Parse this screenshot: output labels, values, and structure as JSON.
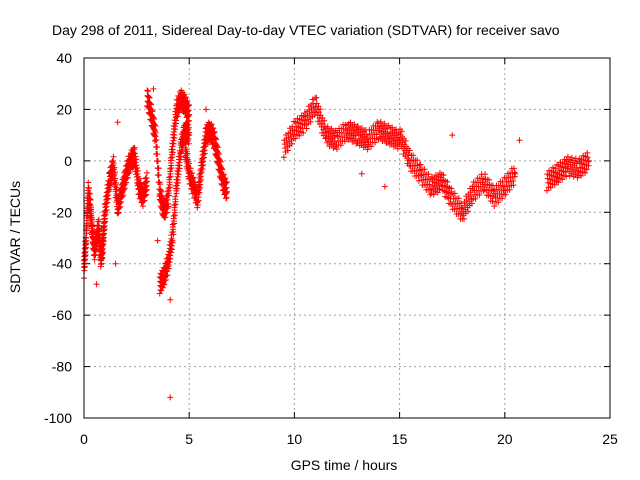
{
  "chart_data": {
    "type": "scatter",
    "title": "Day 298 of 2011, Sidereal Day-to-day VTEC variation (SDTVAR) for receiver savo",
    "xlabel": "GPS time / hours",
    "ylabel": "SDTVAR / TECUs",
    "xlim": [
      0,
      25
    ],
    "ylim": [
      -100,
      40
    ],
    "xticks": [
      0,
      5,
      10,
      15,
      20,
      25
    ],
    "yticks": [
      40,
      20,
      0,
      -20,
      -40,
      -60,
      -80,
      -100
    ],
    "xtick_labels": [
      "0",
      "5",
      "10",
      "15",
      "20",
      "25"
    ],
    "ytick_labels": [
      "40",
      "20",
      "0",
      "-20",
      "-40",
      "-60",
      "-80",
      "-100"
    ],
    "grid": true,
    "marker": "+",
    "color": "#ff0000",
    "series": [
      {
        "name": "SDTVAR",
        "segments": [
          {
            "x": [
              0.0,
              0.1,
              0.2,
              0.3,
              0.4,
              0.5,
              0.6,
              0.7,
              0.8,
              0.9,
              1.0
            ],
            "y": [
              -42,
              -30,
              -12,
              -18,
              -28,
              -35,
              -30,
              -26,
              -38,
              -32,
              -20
            ]
          },
          {
            "x": [
              1.0,
              1.2,
              1.4,
              1.6,
              1.8,
              2.0,
              2.2,
              2.4,
              2.6,
              2.8,
              3.0
            ],
            "y": [
              -20,
              -8,
              -2,
              -18,
              -12,
              -5,
              0,
              2,
              -10,
              -14,
              -8
            ]
          },
          {
            "x": [
              3.0,
              3.2,
              3.4,
              3.6,
              3.8,
              4.0,
              4.2,
              4.4,
              4.6,
              4.8,
              5.0
            ],
            "y": [
              25,
              18,
              10,
              -12,
              -20,
              -15,
              5,
              20,
              24,
              22,
              18
            ]
          },
          {
            "x": [
              3.6,
              3.8,
              4.0,
              4.2,
              4.4,
              4.6,
              4.8,
              5.0
            ],
            "y": [
              -48,
              -45,
              -40,
              -30,
              -10,
              5,
              12,
              10
            ]
          },
          {
            "x": [
              4.8,
              5.0,
              5.2,
              5.4,
              5.6,
              5.8,
              6.0,
              6.2,
              6.4,
              6.6,
              6.8
            ],
            "y": [
              5,
              -5,
              -10,
              -15,
              -2,
              10,
              12,
              8,
              0,
              -8,
              -12
            ]
          },
          {
            "x": [
              9.5,
              10.0,
              10.5,
              11.0,
              11.5,
              12.0,
              12.5,
              13.0,
              13.5,
              14.0,
              14.5,
              15.0
            ],
            "y": [
              5,
              12,
              15,
              22,
              10,
              8,
              12,
              10,
              8,
              12,
              10,
              8
            ]
          },
          {
            "x": [
              15.0,
              15.5,
              16.0,
              16.5,
              17.0,
              17.5,
              18.0,
              18.5,
              19.0,
              19.5,
              20.0,
              20.5
            ],
            "y": [
              10,
              0,
              -5,
              -10,
              -8,
              -15,
              -20,
              -12,
              -8,
              -14,
              -10,
              -5
            ]
          },
          {
            "x": [
              22.0,
              22.5,
              23.0,
              23.5,
              24.0
            ],
            "y": [
              -8,
              -5,
              -2,
              -3,
              0
            ]
          }
        ]
      }
    ],
    "outliers": [
      {
        "x": 4.1,
        "y": -92
      },
      {
        "x": 5.8,
        "y": 20
      },
      {
        "x": 3.3,
        "y": 28
      },
      {
        "x": 1.6,
        "y": 15
      },
      {
        "x": 1.5,
        "y": -40
      },
      {
        "x": 0.6,
        "y": -48
      },
      {
        "x": 3.5,
        "y": -31
      },
      {
        "x": 17.5,
        "y": 10
      },
      {
        "x": 20.7,
        "y": 8
      },
      {
        "x": 13.2,
        "y": -5
      },
      {
        "x": 14.3,
        "y": -10
      },
      {
        "x": 4.1,
        "y": -54
      }
    ]
  }
}
